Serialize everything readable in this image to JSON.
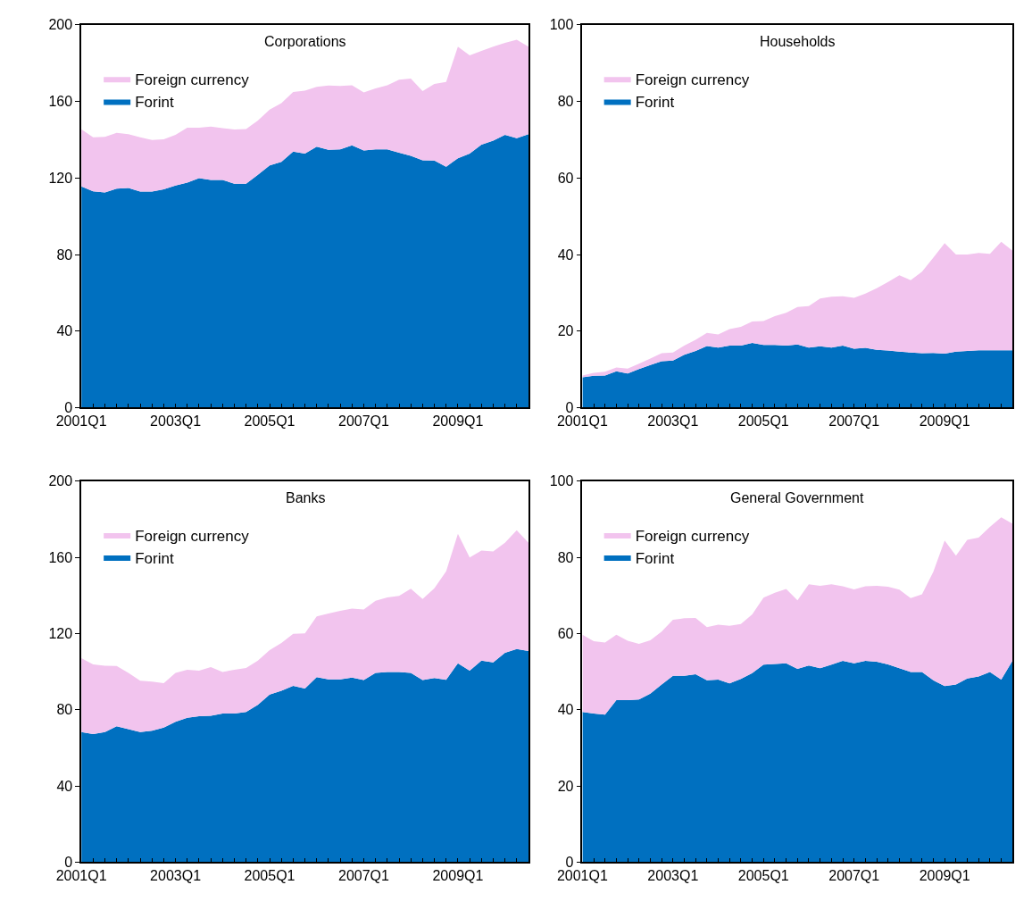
{
  "chart_data": [
    {
      "type": "area",
      "title": "Corporations",
      "stacked": true,
      "legend": "top left",
      "categories": [
        "2001Q1",
        null,
        null,
        null,
        null,
        null,
        null,
        null,
        "2003Q1",
        null,
        null,
        null,
        null,
        null,
        null,
        null,
        "2005Q1",
        null,
        null,
        null,
        null,
        null,
        null,
        null,
        "2007Q1",
        null,
        null,
        null,
        null,
        null,
        null,
        null,
        "2009Q1",
        null,
        null,
        null,
        null,
        null,
        null
      ],
      "ylim": [
        0,
        200
      ],
      "yticks": [
        0,
        40,
        80,
        120,
        160,
        200
      ],
      "series": [
        {
          "name": "Forint",
          "color": "#0070c0",
          "values": [
            115.6,
            113.0,
            112.4,
            114.4,
            114.8,
            112.9,
            112.9,
            114.1,
            116.1,
            117.6,
            119.9,
            119.0,
            119.0,
            117.0,
            117.0,
            121.6,
            126.5,
            128.4,
            133.8,
            132.7,
            136.4,
            134.7,
            135.0,
            137.1,
            134.4,
            134.9,
            134.9,
            133.2,
            131.6,
            129.2,
            129.1,
            125.8,
            130.3,
            132.7,
            137.4,
            139.5,
            142.5,
            140.8,
            142.9
          ]
        },
        {
          "name": "Foreign currency",
          "color": "#f2c4ee",
          "values": [
            29.8,
            28.2,
            29.1,
            29.2,
            28.1,
            28.3,
            26.9,
            26.1,
            26.4,
            28.7,
            26.4,
            27.8,
            27.0,
            28.3,
            28.6,
            28.4,
            29.2,
            30.7,
            31.2,
            33.0,
            31.2,
            33.6,
            33.1,
            31.4,
            30.3,
            31.9,
            33.6,
            38.2,
            40.4,
            36.2,
            40.0,
            44.4,
            58.3,
            51.4,
            49.0,
            49.1,
            48.1,
            51.5,
            45.7
          ]
        }
      ]
    },
    {
      "type": "area",
      "title": "Households",
      "stacked": true,
      "legend": "top left",
      "categories": [
        "2001Q1",
        null,
        null,
        null,
        null,
        null,
        null,
        null,
        "2003Q1",
        null,
        null,
        null,
        null,
        null,
        null,
        null,
        "2005Q1",
        null,
        null,
        null,
        null,
        null,
        null,
        null,
        "2007Q1",
        null,
        null,
        null,
        null,
        null,
        null,
        null,
        "2009Q1",
        null,
        null,
        null,
        null,
        null,
        null
      ],
      "ylim": [
        0,
        100
      ],
      "yticks": [
        0,
        20,
        40,
        60,
        80,
        100
      ],
      "series": [
        {
          "name": "Forint",
          "color": "#0070c0",
          "values": [
            7.9,
            8.3,
            8.4,
            9.5,
            8.9,
            10.1,
            11.1,
            12.1,
            12.3,
            13.8,
            14.8,
            16.1,
            15.7,
            16.2,
            16.2,
            16.9,
            16.4,
            16.4,
            16.2,
            16.5,
            15.7,
            16.0,
            15.7,
            16.2,
            15.4,
            15.6,
            15.1,
            14.9,
            14.6,
            14.4,
            14.2,
            14.3,
            14.1,
            14.6,
            14.8,
            15.0,
            15.0,
            15.0,
            15.0
          ]
        },
        {
          "name": "Foreign currency",
          "color": "#f2c4ee",
          "values": [
            0.5,
            0.8,
            1.0,
            1.0,
            1.3,
            1.4,
            1.7,
            2.1,
            2.1,
            2.4,
            2.9,
            3.4,
            3.4,
            4.3,
            4.9,
            5.6,
            6.2,
            7.5,
            8.6,
            9.8,
            10.8,
            12.5,
            13.3,
            12.9,
            13.3,
            14.2,
            16.1,
            17.9,
            20.0,
            18.9,
            21.3,
            24.9,
            28.9,
            25.4,
            25.2,
            25.4,
            25.2,
            28.3,
            26.0
          ]
        }
      ]
    },
    {
      "type": "area",
      "title": "Banks",
      "stacked": true,
      "legend": "top left",
      "categories": [
        "2001Q1",
        null,
        null,
        null,
        null,
        null,
        null,
        null,
        "2003Q1",
        null,
        null,
        null,
        null,
        null,
        null,
        null,
        "2005Q1",
        null,
        null,
        null,
        null,
        null,
        null,
        null,
        "2007Q1",
        null,
        null,
        null,
        null,
        null,
        null,
        null,
        "2009Q1",
        null,
        null,
        null,
        null,
        null,
        null
      ],
      "ylim": [
        0,
        200
      ],
      "yticks": [
        0,
        40,
        80,
        120,
        160,
        200
      ],
      "series": [
        {
          "name": "Forint",
          "color": "#0070c0",
          "values": [
            68.3,
            67.2,
            68.3,
            71.3,
            69.8,
            68.3,
            68.9,
            70.6,
            73.7,
            75.8,
            76.6,
            76.8,
            78.0,
            78.0,
            78.8,
            82.6,
            87.9,
            89.9,
            92.5,
            91.1,
            97.1,
            95.9,
            95.9,
            96.8,
            95.6,
            99.3,
            99.8,
            99.8,
            99.3,
            95.6,
            96.6,
            95.7,
            104.4,
            100.5,
            105.8,
            104.8,
            109.9,
            111.8,
            110.8
          ]
        },
        {
          "name": "Foreign currency",
          "color": "#f2c4ee",
          "values": [
            38.7,
            36.6,
            34.8,
            31.6,
            29.5,
            26.9,
            25.8,
            23.3,
            25.6,
            25.2,
            23.9,
            25.6,
            21.8,
            23.0,
            23.1,
            23.2,
            23.4,
            25.1,
            27.3,
            29.0,
            31.9,
            34.6,
            36.0,
            36.3,
            37.0,
            37.9,
            39.1,
            40.0,
            44.2,
            42.5,
            47.1,
            56.9,
            68.0,
            59.4,
            57.7,
            58.3,
            57.8,
            62.4,
            56.8
          ]
        }
      ]
    },
    {
      "type": "area",
      "title": "General Government",
      "stacked": true,
      "legend": "top left",
      "categories": [
        "2001Q1",
        null,
        null,
        null,
        null,
        null,
        null,
        null,
        "2003Q1",
        null,
        null,
        null,
        null,
        null,
        null,
        null,
        "2005Q1",
        null,
        null,
        null,
        null,
        null,
        null,
        null,
        "2007Q1",
        null,
        null,
        null,
        null,
        null,
        null,
        null,
        "2009Q1",
        null,
        null,
        null,
        null,
        null,
        null
      ],
      "ylim": [
        0,
        100
      ],
      "yticks": [
        0,
        20,
        40,
        60,
        80,
        100
      ],
      "series": [
        {
          "name": "Forint",
          "color": "#0070c0",
          "values": [
            39.4,
            39.0,
            38.7,
            42.5,
            42.5,
            42.7,
            44.2,
            46.6,
            48.9,
            48.9,
            49.3,
            47.7,
            47.9,
            46.9,
            48.1,
            49.6,
            51.8,
            52.0,
            52.2,
            50.7,
            51.6,
            50.9,
            51.8,
            52.8,
            52.2,
            52.8,
            52.6,
            51.9,
            50.9,
            49.9,
            49.9,
            47.7,
            46.2,
            46.6,
            48.2,
            48.7,
            49.9,
            47.9,
            52.9
          ]
        },
        {
          "name": "Foreign currency",
          "color": "#f2c4ee",
          "values": [
            20.3,
            19.0,
            18.9,
            17.2,
            15.6,
            14.6,
            14.0,
            13.9,
            14.7,
            15.1,
            14.8,
            14.0,
            14.4,
            15.1,
            14.4,
            15.4,
            17.6,
            18.7,
            19.5,
            18.0,
            21.3,
            21.6,
            21.1,
            19.6,
            19.4,
            19.6,
            19.9,
            20.4,
            20.6,
            19.4,
            20.4,
            28.5,
            38.2,
            33.8,
            36.4,
            36.5,
            38.1,
            42.6,
            35.9
          ]
        }
      ]
    }
  ]
}
